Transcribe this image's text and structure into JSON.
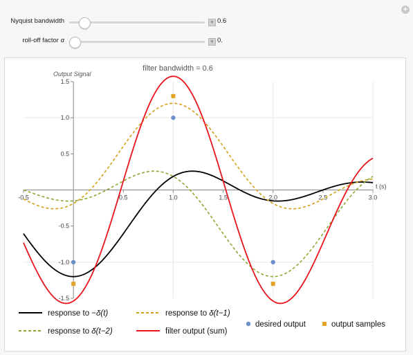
{
  "controls": {
    "bandwidth": {
      "label": "Nyquist bandwidth",
      "value": "0.6",
      "fraction": 0.08
    },
    "rolloff": {
      "label": "roll-off factor",
      "symbol": "α",
      "value": "0.",
      "fraction": 0.0
    }
  },
  "chart_data": {
    "type": "line",
    "title": "filter bandwidth = 0.6",
    "ylabel": "Output Signal",
    "xlabel": "t (s)",
    "xlim": [
      -0.5,
      3.0
    ],
    "ylim": [
      -1.5,
      1.5
    ],
    "x_ticks": [
      "-0.5",
      "0.5",
      "1.0",
      "1.5",
      "2.0",
      "2.5",
      "3.0"
    ],
    "y_ticks": [
      "1.5",
      "1.0",
      "0.5",
      "-0.5",
      "-1.0",
      "-1.5"
    ],
    "bandwidth": 0.6,
    "series": [
      {
        "name": "response to −δ(t)",
        "label_prefix": "response to −",
        "label_italic": "δ(t)",
        "color": "#000000",
        "style": "solid",
        "shift": 0,
        "amp": -1
      },
      {
        "name": "response to δ(t−1)",
        "label_prefix": "response to ",
        "label_italic": "δ(t−1)",
        "color": "#d4a017",
        "style": "dashed",
        "shift": 1,
        "amp": 1
      },
      {
        "name": "response to δ(t−2)",
        "label_prefix": "response to ",
        "label_italic": "δ(t−2)",
        "color": "#8aa832",
        "style": "dashed",
        "shift": 2,
        "amp": -1
      },
      {
        "name": "filter output (sum)",
        "label_prefix": "filter output (sum)",
        "label_italic": "",
        "color": "#e8141c",
        "style": "solid",
        "sum": true
      }
    ],
    "desired_output": {
      "name": "desired output",
      "color": "#6a8fc9",
      "points": [
        [
          0,
          -1
        ],
        [
          1,
          1
        ],
        [
          2,
          -1
        ]
      ]
    },
    "output_samples": {
      "name": "output samples",
      "color": "#e2a427",
      "points": [
        [
          0,
          -1.3
        ],
        [
          1,
          1.3
        ],
        [
          2,
          -1.3
        ]
      ]
    }
  }
}
